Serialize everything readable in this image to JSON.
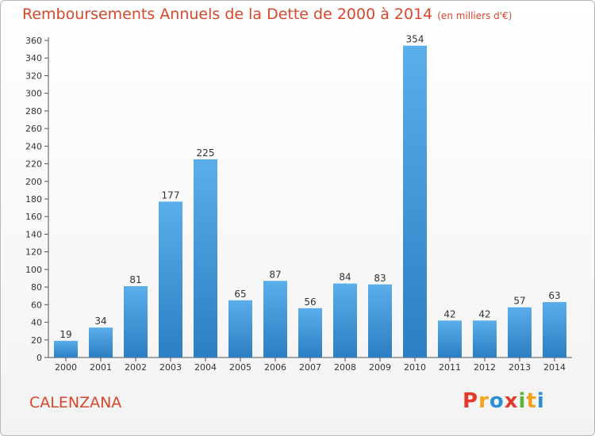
{
  "title": "Remboursements Annuels de la Dette de 2000 à 2014",
  "unit": "(en milliers d'€)",
  "city": "CALENZANA",
  "brand": {
    "letters": [
      "P",
      "r",
      "o",
      "x",
      "i",
      "t",
      "i"
    ],
    "colors": [
      "#e23b2e",
      "#f4a11d",
      "#2d8fd6",
      "#e23b2e",
      "#5db33a",
      "#f4a11d",
      "#2d8fd6"
    ]
  },
  "colors": {
    "bar_top": "#5aaeea",
    "bar_bottom": "#2b7fc2",
    "title": "#d7472b"
  },
  "chart_data": {
    "type": "bar",
    "categories": [
      "2000",
      "2001",
      "2002",
      "2003",
      "2004",
      "2005",
      "2006",
      "2007",
      "2008",
      "2009",
      "2010",
      "2011",
      "2012",
      "2013",
      "2014"
    ],
    "values": [
      19,
      34,
      81,
      177,
      225,
      65,
      87,
      56,
      84,
      83,
      354,
      42,
      42,
      57,
      63
    ],
    "ylim": [
      0,
      360
    ],
    "yticks": [
      0,
      20,
      40,
      60,
      80,
      100,
      120,
      140,
      160,
      180,
      200,
      220,
      240,
      260,
      280,
      300,
      320,
      340,
      360
    ],
    "grid": false
  }
}
